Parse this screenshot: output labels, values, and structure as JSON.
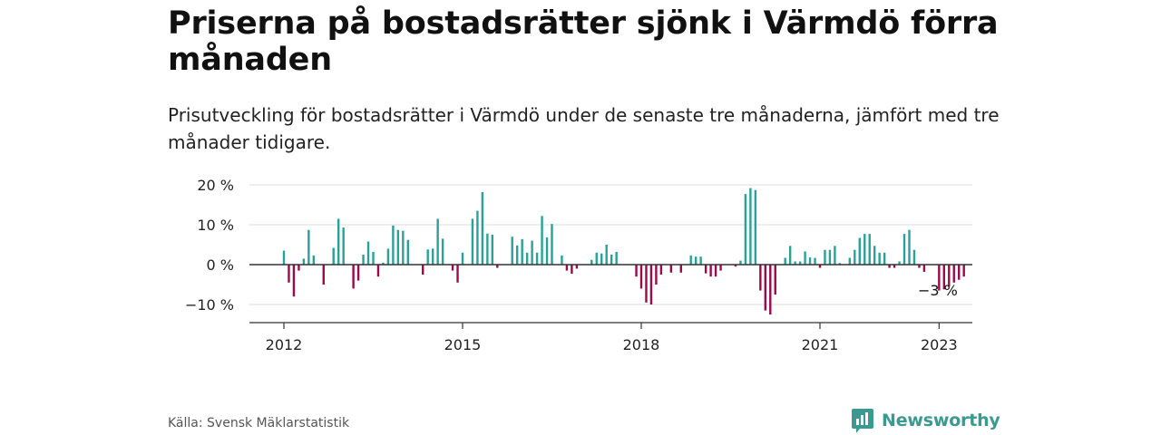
{
  "title": "Priserna på bostadsrätter sjönk i Värmdö förra månaden",
  "subtitle": "Prisutveckling för bostadsrätter i Värmdö under de senaste tre månaderna, jämfört med tre månader tidigare.",
  "source": "Källa: Svensk Mäklarstatistik",
  "brand": {
    "name": "Newsworthy",
    "icon": "newsworthy-logo-icon"
  },
  "colors": {
    "positive": "#2aa198",
    "negative": "#9c0a4a",
    "grid": "#dddddd",
    "axis": "#333333",
    "text": "#222222"
  },
  "chart_data": {
    "type": "bar",
    "x_start": "2012-01",
    "x_unit": "month",
    "y_unit": "%",
    "ylim": [
      -15,
      20
    ],
    "yticks": [
      {
        "value": 20,
        "label": "20 %"
      },
      {
        "value": 10,
        "label": "10 %"
      },
      {
        "value": 0,
        "label": "0 %"
      },
      {
        "value": -10,
        "label": "−10 %"
      }
    ],
    "xticks": [
      {
        "date": "2012-01",
        "label": "2012"
      },
      {
        "date": "2015-01",
        "label": "2015"
      },
      {
        "date": "2018-01",
        "label": "2018"
      },
      {
        "date": "2021-01",
        "label": "2021"
      },
      {
        "date": "2023-01",
        "label": "2023"
      }
    ],
    "grid": true,
    "values": [
      3.5,
      -4.5,
      -8,
      -1.5,
      1.5,
      8.7,
      2.3,
      0,
      -5,
      0,
      4.2,
      11.5,
      9.3,
      0,
      -6,
      -4,
      2.5,
      5.8,
      3.2,
      -3,
      0.5,
      4,
      9.8,
      8.7,
      8.5,
      6.2,
      0,
      0,
      -2.5,
      3.8,
      4,
      11.5,
      6.5,
      0,
      -1.5,
      -4.5,
      3,
      0,
      11.5,
      13.5,
      18.2,
      7.8,
      7.5,
      -0.8,
      0,
      0,
      7,
      4.8,
      6.4,
      3,
      6,
      3,
      12.2,
      6.8,
      10.2,
      0,
      2.3,
      -1.5,
      -2.3,
      -1,
      0,
      0,
      1.2,
      3,
      2.8,
      5,
      2.5,
      3.2,
      0,
      0,
      0,
      -3,
      -6,
      -9.5,
      -10,
      -5,
      -2.5,
      0,
      -2,
      0,
      -2,
      0,
      2.3,
      2,
      2,
      -2.2,
      -3,
      -3,
      -1.5,
      0,
      0,
      -0.5,
      1,
      17.7,
      19.2,
      18.7,
      -6.5,
      -11.5,
      -12.5,
      -7.5,
      0,
      1.7,
      4.7,
      0.8,
      0.8,
      3.3,
      1.8,
      1.7,
      -0.8,
      3.7,
      3.7,
      4.7,
      0.4,
      0,
      1.7,
      3.7,
      6.7,
      7.7,
      7.7,
      4.7,
      3,
      3,
      -0.8,
      -0.8,
      0.8,
      7.7,
      8.7,
      3.7,
      -0.8,
      -1.8,
      0,
      0,
      -6.5,
      -6.2,
      -5.5,
      -4.5,
      -3.8,
      -3
    ],
    "annotations": [
      {
        "label": "−3 %"
      }
    ]
  }
}
